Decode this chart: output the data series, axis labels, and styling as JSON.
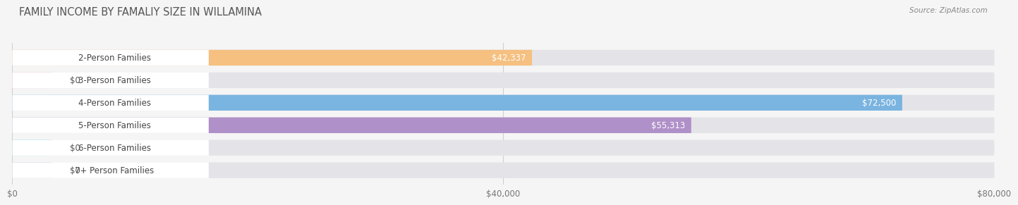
{
  "title": "FAMILY INCOME BY FAMALIY SIZE IN WILLAMINA",
  "source_text": "Source: ZipAtlas.com",
  "categories": [
    "2-Person Families",
    "3-Person Families",
    "4-Person Families",
    "5-Person Families",
    "6-Person Families",
    "7+ Person Families"
  ],
  "values": [
    42337,
    0,
    72500,
    55313,
    0,
    0
  ],
  "bar_colors": [
    "#f5c080",
    "#f0a0a8",
    "#7ab4e0",
    "#b090c8",
    "#70c8c0",
    "#b0b0d8"
  ],
  "label_colors": [
    "#555555",
    "#555555",
    "#ffffff",
    "#ffffff",
    "#555555",
    "#555555"
  ],
  "value_label_dark": [
    "#555555",
    "#555555",
    "#555555",
    "#555555",
    "#555555",
    "#555555"
  ],
  "xlim": [
    0,
    80000
  ],
  "xtick_values": [
    0,
    40000,
    80000
  ],
  "xtick_labels": [
    "$0",
    "$40,000",
    "$80,000"
  ],
  "bg_color": "#f5f5f5",
  "bar_bg_color": "#e4e4e8",
  "bar_bg_color2": "#e8e8ec",
  "title_fontsize": 10.5,
  "label_fontsize": 8.5,
  "value_fontsize": 8.5,
  "tick_fontsize": 8.5,
  "white_label_bg": "#ffffff"
}
